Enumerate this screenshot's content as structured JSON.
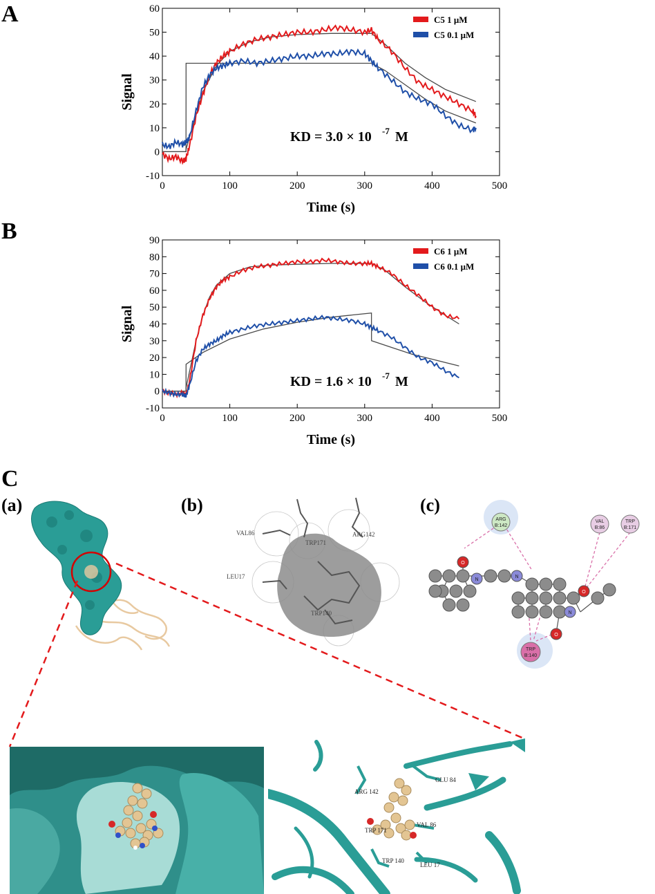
{
  "panels": {
    "A": "A",
    "B": "B",
    "C": "C",
    "sub_a": "(a)",
    "sub_b": "(b)",
    "sub_c": "(c)"
  },
  "colors": {
    "red_series": "#e31a1c",
    "blue_series": "#1f4fa8",
    "fit_line": "#4a4a4a",
    "protein_surface": "#2a9d96",
    "ribbon": "#e8c9a0"
  },
  "chart_data": [
    {
      "type": "line",
      "panel": "A",
      "title": "",
      "xlabel": "Time (s)",
      "ylabel": "Signal",
      "xlim": [
        0,
        500
      ],
      "ylim": [
        -10,
        60
      ],
      "xticks": [
        0,
        100,
        200,
        300,
        400,
        500
      ],
      "yticks": [
        -10,
        0,
        10,
        20,
        30,
        40,
        50,
        60
      ],
      "annotation": "KD = 3.0 × 10",
      "annotation_exp": "-7",
      "annotation_unit": "M",
      "legend_position": "top-right",
      "series": [
        {
          "name": "C5  1 μM",
          "color": "#e31a1c",
          "x": [
            0,
            10,
            20,
            30,
            35,
            40,
            50,
            60,
            70,
            80,
            90,
            100,
            120,
            140,
            160,
            180,
            200,
            220,
            240,
            260,
            280,
            300,
            310,
            320,
            340,
            360,
            380,
            400,
            420,
            440,
            460,
            465
          ],
          "y": [
            -1,
            -3,
            -2,
            -4,
            -3,
            2,
            15,
            24,
            32,
            37,
            40,
            42,
            45,
            47,
            48,
            49,
            50,
            50,
            51,
            52,
            51,
            50,
            51,
            47,
            42,
            35,
            29,
            26,
            23,
            20,
            17,
            15
          ]
        },
        {
          "name": "C5  0.1 μM",
          "color": "#1f4fa8",
          "x": [
            0,
            10,
            20,
            30,
            35,
            40,
            50,
            60,
            70,
            80,
            90,
            100,
            120,
            140,
            160,
            180,
            200,
            220,
            240,
            260,
            280,
            300,
            310,
            320,
            340,
            360,
            380,
            400,
            420,
            440,
            460,
            465
          ],
          "y": [
            3,
            2,
            4,
            3,
            4,
            6,
            17,
            27,
            32,
            35,
            36,
            37,
            38,
            37,
            38,
            39,
            40,
            40,
            41,
            41,
            42,
            41,
            38,
            35,
            30,
            25,
            22,
            20,
            15,
            11,
            9,
            10
          ]
        },
        {
          "name": "",
          "color": "#4a4a4a",
          "x": [
            0,
            35,
            35.1,
            60,
            80,
            100,
            130,
            160,
            200,
            250,
            310,
            330,
            360,
            390,
            420,
            465
          ],
          "y": [
            0,
            0,
            1,
            25,
            36,
            42,
            46,
            48,
            49,
            49.5,
            49.5,
            45,
            37,
            31,
            26,
            21
          ]
        },
        {
          "name": "",
          "color": "#4a4a4a",
          "x": [
            0,
            35,
            35.1,
            310,
            330,
            360,
            390,
            420,
            465
          ],
          "y": [
            0,
            0,
            37,
            37,
            34,
            28,
            22,
            17,
            12
          ]
        }
      ]
    },
    {
      "type": "line",
      "panel": "B",
      "title": "",
      "xlabel": "Time (s)",
      "ylabel": "Signal",
      "xlim": [
        0,
        500
      ],
      "ylim": [
        -10,
        90
      ],
      "xticks": [
        0,
        100,
        200,
        300,
        400,
        500
      ],
      "yticks": [
        -10,
        0,
        10,
        20,
        30,
        40,
        50,
        60,
        70,
        80,
        90
      ],
      "annotation": "KD = 1.6 × 10",
      "annotation_exp": "-7",
      "annotation_unit": "M",
      "legend_position": "top-right",
      "series": [
        {
          "name": "C6  1 μM",
          "color": "#e31a1c",
          "x": [
            0,
            10,
            20,
            30,
            35,
            40,
            50,
            60,
            70,
            80,
            90,
            100,
            120,
            140,
            160,
            180,
            200,
            220,
            240,
            260,
            280,
            300,
            310,
            320,
            340,
            360,
            380,
            400,
            420,
            440
          ],
          "y": [
            0,
            -1,
            -2,
            -1,
            -2,
            5,
            30,
            45,
            55,
            62,
            66,
            68,
            72,
            74,
            75,
            76,
            77,
            77,
            78,
            77,
            76,
            76,
            76,
            74,
            70,
            63,
            57,
            50,
            45,
            43
          ]
        },
        {
          "name": "C6  0.1 μM",
          "color": "#1f4fa8",
          "x": [
            0,
            10,
            20,
            30,
            35,
            40,
            50,
            60,
            70,
            80,
            90,
            100,
            120,
            140,
            160,
            180,
            200,
            220,
            240,
            260,
            280,
            300,
            310,
            320,
            340,
            360,
            380,
            400,
            420,
            440
          ],
          "y": [
            0,
            -1,
            -2,
            -2,
            -3,
            3,
            18,
            25,
            28,
            30,
            33,
            35,
            37,
            39,
            40,
            41,
            42,
            43,
            44,
            43,
            42,
            40,
            38,
            36,
            32,
            26,
            20,
            17,
            12,
            8
          ]
        },
        {
          "name": "",
          "color": "#4a4a4a",
          "x": [
            0,
            35,
            35.1,
            50,
            60,
            70,
            80,
            100,
            130,
            160,
            200,
            250,
            310,
            330,
            360,
            390,
            420,
            440
          ],
          "y": [
            0,
            0,
            2,
            30,
            45,
            56,
            63,
            70,
            74,
            75,
            75.5,
            76,
            76,
            72,
            62,
            53,
            45,
            40
          ]
        },
        {
          "name": "",
          "color": "#4a4a4a",
          "x": [
            0,
            35,
            35.1,
            60,
            100,
            150,
            200,
            250,
            310,
            310.1,
            340,
            370,
            400,
            440
          ],
          "y": [
            0,
            0,
            16,
            23,
            31,
            37,
            41,
            44,
            46.5,
            30,
            26,
            22,
            19,
            15
          ]
        }
      ]
    }
  ],
  "panel_c": {
    "zoom_labels": [
      "ARG 142",
      "GLU 84",
      "TRP 171",
      "VAL 86",
      "TRP 140",
      "LEU 17"
    ],
    "surface_labels": [
      "VAL86",
      "TRP171",
      "ARG142",
      "LEU17",
      "TRP140"
    ],
    "diagram_residues": [
      {
        "name": "ARG",
        "id": "B:142"
      },
      {
        "name": "VAL",
        "id": "B:86"
      },
      {
        "name": "TRP",
        "id": "B:171"
      },
      {
        "name": "TRP",
        "id": "B:140"
      }
    ],
    "atoms": {
      "oxygen": "O",
      "nitrogen": "N"
    }
  }
}
